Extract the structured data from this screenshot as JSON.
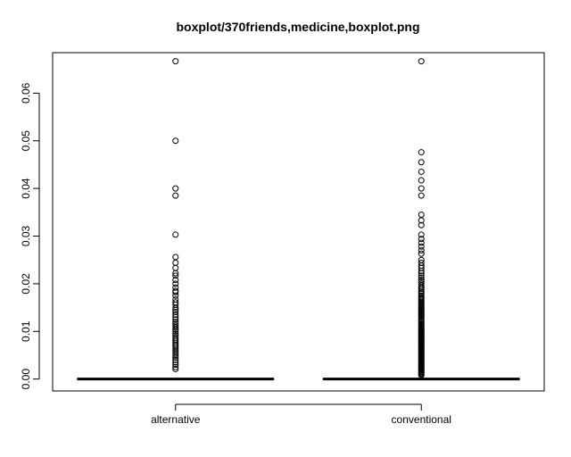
{
  "chart_data": {
    "type": "boxplot",
    "title": "boxplot/370friends,medicine,boxplot.png",
    "xlabel": "",
    "ylabel": "",
    "ylim": [
      -0.0025,
      0.0685
    ],
    "yticks": [
      0.0,
      0.01,
      0.02,
      0.03,
      0.04,
      0.05,
      0.06
    ],
    "ytick_labels": [
      "0.00",
      "0.01",
      "0.02",
      "0.03",
      "0.04",
      "0.05",
      "0.06"
    ],
    "categories": [
      "alternative",
      "conventional"
    ],
    "boxes": [
      {
        "name": "alternative",
        "q1": 0.0,
        "median": 0.0,
        "q3": 0.0,
        "whisker_low": 0.0,
        "whisker_high": 0.0,
        "outliers": [
          0.0667,
          0.05,
          0.04,
          0.0385,
          0.0303,
          0.0256,
          0.0244,
          0.0233,
          0.0222,
          0.0217,
          0.0208,
          0.02,
          0.0192,
          0.0185,
          0.0182,
          0.0175,
          0.0167,
          0.0161,
          0.0156,
          0.0149,
          0.0145,
          0.0141,
          0.0135,
          0.013,
          0.0125,
          0.012,
          0.0116,
          0.0112,
          0.0108,
          0.0104,
          0.01,
          0.0095,
          0.0091,
          0.0087,
          0.0083,
          0.008,
          0.0076,
          0.0072,
          0.0069,
          0.0065,
          0.0061,
          0.0057,
          0.0053,
          0.0049,
          0.0045,
          0.004,
          0.0035,
          0.003,
          0.0025,
          0.0021
        ]
      },
      {
        "name": "conventional",
        "q1": 0.0,
        "median": 0.0,
        "q3": 0.0,
        "whisker_low": 0.0,
        "whisker_high": 0.0,
        "outliers": [
          0.0667,
          0.0476,
          0.0455,
          0.0435,
          0.0417,
          0.04,
          0.0385,
          0.0345,
          0.0333,
          0.0323,
          0.0303,
          0.0294,
          0.0286,
          0.0278,
          0.027,
          0.0263,
          0.025,
          0.0244,
          0.0238,
          0.0233,
          0.0227,
          0.0222,
          0.0217,
          0.0213,
          0.0208,
          0.0204,
          0.02,
          0.0196,
          0.0192,
          0.0189,
          0.0185,
          0.0182,
          0.0179,
          0.0175,
          0.0172,
          0.0169,
          0.0167,
          0.0164,
          0.0161,
          0.0159,
          0.0156,
          0.0154,
          0.0152,
          0.0149,
          0.0147,
          0.0145,
          0.0143,
          0.0141,
          0.0139,
          0.0137,
          0.0135,
          0.0133,
          0.013,
          0.0128,
          0.0125,
          0.0122,
          0.012,
          0.0118,
          0.0115,
          0.0113,
          0.0111,
          0.0108,
          0.0106,
          0.0104,
          0.0102,
          0.01,
          0.0098,
          0.0096,
          0.0094,
          0.0092,
          0.009,
          0.0088,
          0.0086,
          0.0084,
          0.0082,
          0.008,
          0.0078,
          0.0076,
          0.0074,
          0.0072,
          0.007,
          0.0068,
          0.0066,
          0.0064,
          0.0062,
          0.006,
          0.0058,
          0.0056,
          0.0054,
          0.0052,
          0.005,
          0.0048,
          0.0046,
          0.0044,
          0.0042,
          0.004,
          0.0038,
          0.0036,
          0.0034,
          0.0032,
          0.003,
          0.0028,
          0.0026,
          0.0024,
          0.0022,
          0.002,
          0.0018,
          0.0016,
          0.0014,
          0.0012,
          0.001,
          0.0008
        ]
      }
    ],
    "grid": false,
    "legend": "none",
    "colors": {
      "stroke": "#000000",
      "background": "#ffffff"
    }
  }
}
